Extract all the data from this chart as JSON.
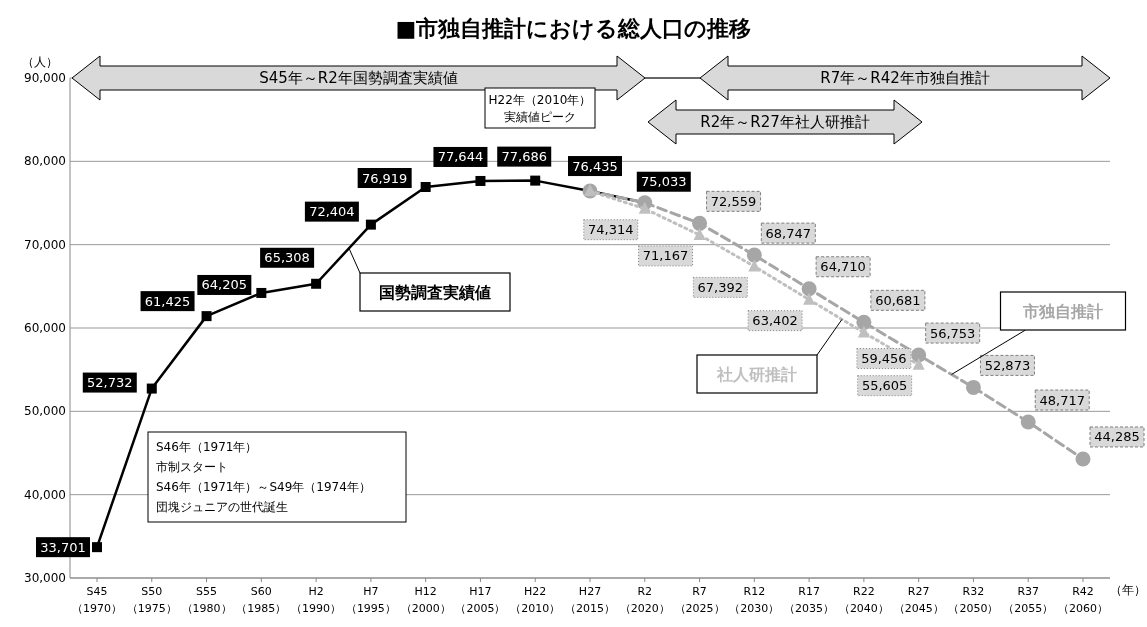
{
  "chart_data": {
    "type": "line",
    "title": "■市独自推計における総人口の推移",
    "ylabel": "（人）",
    "xlabel": "（年）",
    "categories": [
      "S45\n（1970）",
      "S50\n（1975）",
      "S55\n（1980）",
      "S60\n（1985）",
      "H2\n（1990）",
      "H7\n（1995）",
      "H12\n（2000）",
      "H17\n（2005）",
      "H22\n（2010）",
      "H27\n（2015）",
      "R2\n（2020）",
      "R7\n（2025）",
      "R12\n（2030）",
      "R17\n（2035）",
      "R22\n（2040）",
      "R27\n（2045）",
      "R32\n（2050）",
      "R37\n（2055）",
      "R42\n（2060）"
    ],
    "series": [
      {
        "name": "国勢調査実績値",
        "color": "#000000",
        "marker": "square",
        "line_style": "solid",
        "values": [
          33701,
          52732,
          61425,
          64205,
          65308,
          72404,
          76919,
          77644,
          77686,
          76435,
          75033,
          null,
          null,
          null,
          null,
          null,
          null,
          null,
          null
        ],
        "value_labels": [
          "33,701",
          "52,732",
          "61,425",
          "64,205",
          "65,308",
          "72,404",
          "76,919",
          "77,644",
          "77,686",
          "76,435",
          "75,033",
          null,
          null,
          null,
          null,
          null,
          null,
          null,
          null
        ]
      },
      {
        "name": "市独自推計",
        "color": "#a6a6a6",
        "marker": "circle",
        "line_style": "dashed",
        "values": [
          null,
          null,
          null,
          null,
          null,
          null,
          null,
          null,
          null,
          76435,
          75033,
          72559,
          68747,
          64710,
          60681,
          56753,
          52873,
          48717,
          44285
        ],
        "value_labels": [
          null,
          null,
          null,
          null,
          null,
          null,
          null,
          null,
          null,
          null,
          null,
          "72,559",
          "68,747",
          "64,710",
          "60,681",
          "56,753",
          "52,873",
          "48,717",
          "44,285"
        ]
      },
      {
        "name": "社人研推計",
        "color": "#bfbfbf",
        "marker": "triangle",
        "line_style": "dotted",
        "values": [
          null,
          null,
          null,
          null,
          null,
          null,
          null,
          null,
          null,
          76435,
          74314,
          71167,
          67392,
          63402,
          59456,
          55605,
          null,
          null,
          null
        ],
        "value_labels": [
          null,
          null,
          null,
          null,
          null,
          null,
          null,
          null,
          null,
          null,
          "74,314",
          "71,167",
          "67,392",
          "63,402",
          "59,456",
          "55,605",
          null,
          null,
          null
        ]
      }
    ],
    "ylim": [
      30000,
      90000
    ],
    "yticks": [
      {
        "value": 30000,
        "label": "30,000"
      },
      {
        "value": 40000,
        "label": "40,000"
      },
      {
        "value": 50000,
        "label": "50,000"
      },
      {
        "value": 60000,
        "label": "60,000"
      },
      {
        "value": 70000,
        "label": "70,000"
      },
      {
        "value": 80000,
        "label": "80,000"
      },
      {
        "value": 90000,
        "label": "90,000"
      }
    ],
    "grid": "y",
    "legend": false,
    "annotations": [
      "S45年～R2年国勢調査実績値",
      "R7年～R42年市独自推計",
      "R2年～R27年社人研推計",
      "H22年（2010年）",
      "実績値ピーク",
      "S46年（1971年）",
      "市制スタート",
      "S46年（1971年）～S49年（1974年）",
      "団塊ジュニアの世代誕生"
    ]
  }
}
